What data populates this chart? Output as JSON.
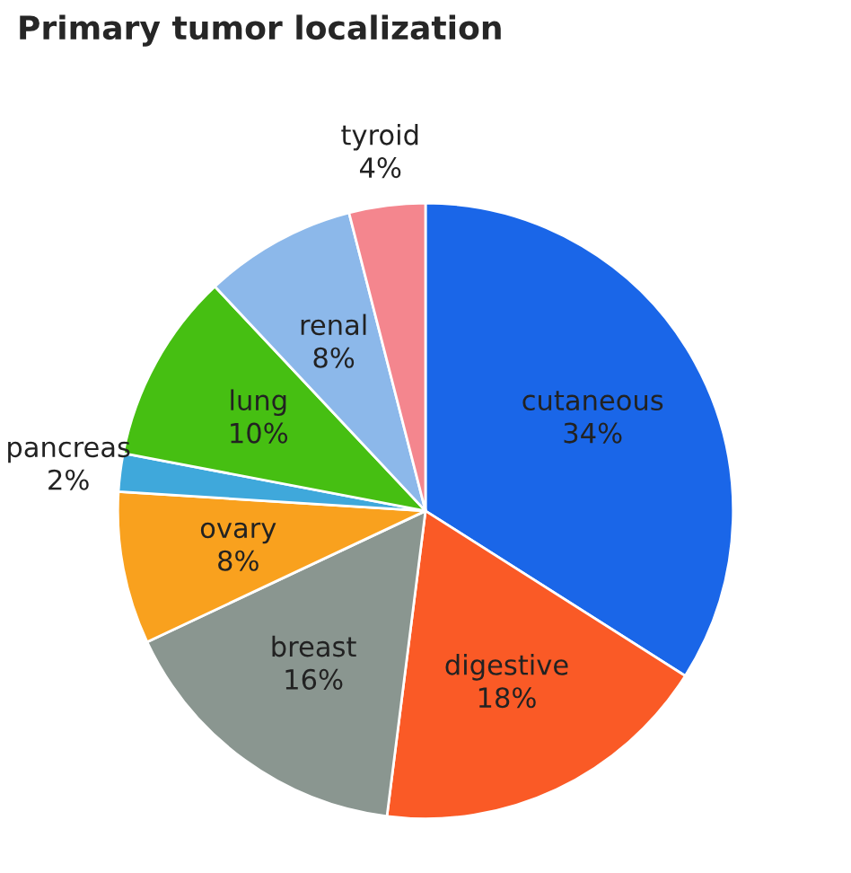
{
  "chart_data": {
    "type": "pie",
    "title": "Primary tumor localization",
    "categories": [
      "cutaneous",
      "digestive",
      "breast",
      "ovary",
      "pancreas",
      "lung",
      "renal",
      "tyroid"
    ],
    "values": [
      34,
      18,
      16,
      8,
      2,
      10,
      8,
      4
    ],
    "value_labels": [
      "34%",
      "18%",
      "16%",
      "8%",
      "2%",
      "10%",
      "8%",
      "4%"
    ],
    "colors": [
      "#1a66e8",
      "#fa5a26",
      "#8a9690",
      "#f9a11e",
      "#3fa8db",
      "#46bf12",
      "#8cb8ea",
      "#f4868e"
    ],
    "legend": false
  }
}
